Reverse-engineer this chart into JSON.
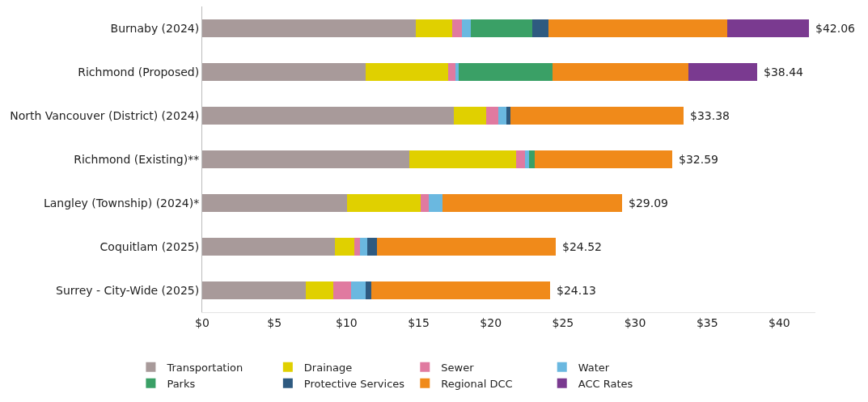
{
  "chart_data": {
    "type": "bar",
    "orientation": "horizontal",
    "stacked": true,
    "categories": [
      "Burnaby (2024)",
      "Richmond (Proposed)",
      "North Vancouver (District) (2024)",
      "Richmond (Existing)**",
      "Langley (Township) (2024)*",
      "Coquitlam (2025)",
      "Surrey - City-Wide (2025)"
    ],
    "series": [
      {
        "name": "Transportation",
        "color": "#a89a9a",
        "values": [
          14.8,
          11.35,
          17.45,
          14.36,
          10.03,
          9.2,
          7.15
        ]
      },
      {
        "name": "Drainage",
        "color": "#e0d000",
        "values": [
          2.5,
          5.7,
          2.25,
          7.42,
          5.09,
          1.34,
          1.94
        ]
      },
      {
        "name": "Sewer",
        "color": "#e07aa0",
        "values": [
          0.7,
          0.5,
          0.8,
          0.59,
          0.56,
          0.42,
          1.22
        ]
      },
      {
        "name": "Water",
        "color": "#6ab8e0",
        "values": [
          0.6,
          0.25,
          0.6,
          0.28,
          0.97,
          0.45,
          0.99
        ]
      },
      {
        "name": "Parks",
        "color": "#3aa066",
        "values": [
          4.3,
          6.45,
          0,
          0.39,
          0,
          0,
          0
        ]
      },
      {
        "name": "Protective Services",
        "color": "#2e5a80",
        "values": [
          1.1,
          0,
          0.25,
          0,
          0,
          0.7,
          0.44
        ]
      },
      {
        "name": "Regional DCC",
        "color": "#f08a1a",
        "values": [
          12.4,
          9.45,
          12.03,
          9.55,
          12.44,
          12.41,
          12.39
        ]
      },
      {
        "name": "ACC Rates",
        "color": "#7a3a90",
        "values": [
          5.66,
          4.74,
          0,
          0,
          0,
          0,
          0
        ]
      }
    ],
    "totals": [
      "$42.06",
      "$38.44",
      "$33.38",
      "$32.59",
      "$29.09",
      "$24.52",
      "$24.13"
    ],
    "xlim": [
      0,
      42.5
    ],
    "xticks": [
      {
        "value": 0,
        "label": "$0"
      },
      {
        "value": 5,
        "label": "$5"
      },
      {
        "value": 10,
        "label": "$10"
      },
      {
        "value": 15,
        "label": "$15"
      },
      {
        "value": 20,
        "label": "$20"
      },
      {
        "value": 25,
        "label": "$25"
      },
      {
        "value": 30,
        "label": "$30"
      },
      {
        "value": 35,
        "label": "$35"
      },
      {
        "value": 40,
        "label": "$40"
      }
    ],
    "grid": false,
    "legend": "bottom"
  }
}
